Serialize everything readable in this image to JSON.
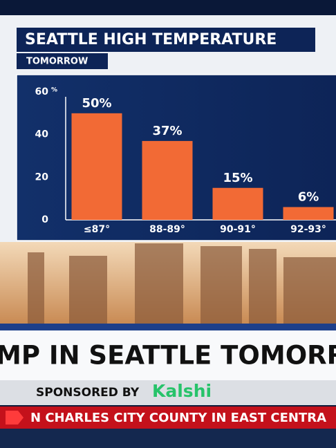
{
  "chart_data": {
    "type": "bar",
    "title": "SEATTLE HIGH TEMPERATURE",
    "subtitle": "TOMORROW",
    "categories": [
      "≤87°",
      "88-89°",
      "90-91°",
      "92-93°"
    ],
    "values": [
      50,
      37,
      15,
      6
    ],
    "value_labels": [
      "50%",
      "37%",
      "15%",
      "6%"
    ],
    "color": "#f26a35",
    "ylim": [
      0,
      60
    ],
    "yticks": [
      0,
      20,
      40,
      60
    ],
    "y_unit": "%",
    "grid": false
  },
  "lower_third": {
    "headline": "MP IN SEATTLE TOMORROW",
    "sponsor_label": "SPONSORED BY",
    "sponsor": "Kalshi"
  },
  "ticker": {
    "text": "N CHARLES CITY COUNTY IN EAST CENTRA"
  }
}
